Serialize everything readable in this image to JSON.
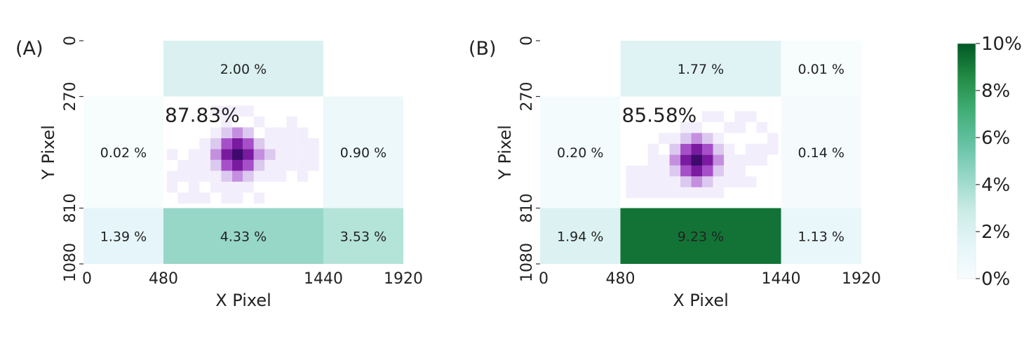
{
  "chart_data": [
    {
      "type": "heatmap",
      "panel_label": "(A)",
      "xlabel": "X Pixel",
      "ylabel": "Y Pixel",
      "x_ticks": [
        "0",
        "480",
        "1440",
        "1920"
      ],
      "y_ticks": [
        "0",
        "270",
        "810",
        "1080"
      ],
      "x_edges": [
        0,
        480,
        1440,
        1920
      ],
      "y_edges": [
        0,
        270,
        810,
        1080
      ],
      "center_label": "87.83%",
      "cells": [
        {
          "row": 0,
          "col": 0,
          "value": null,
          "label": ""
        },
        {
          "row": 0,
          "col": 1,
          "value": 2.0,
          "label": "2.00 %"
        },
        {
          "row": 0,
          "col": 2,
          "value": null,
          "label": ""
        },
        {
          "row": 1,
          "col": 0,
          "value": 0.02,
          "label": "0.02 %"
        },
        {
          "row": 1,
          "col": 2,
          "value": 0.9,
          "label": "0.90 %"
        },
        {
          "row": 2,
          "col": 0,
          "value": 1.39,
          "label": "1.39 %"
        },
        {
          "row": 2,
          "col": 1,
          "value": 4.33,
          "label": "4.33 %"
        },
        {
          "row": 2,
          "col": 2,
          "value": 3.53,
          "label": "3.53 %"
        }
      ]
    },
    {
      "type": "heatmap",
      "panel_label": "(B)",
      "xlabel": "X Pixel",
      "ylabel": "Y Pixel",
      "x_ticks": [
        "0",
        "480",
        "1440",
        "1920"
      ],
      "y_ticks": [
        "0",
        "270",
        "810",
        "1080"
      ],
      "x_edges": [
        0,
        480,
        1440,
        1920
      ],
      "y_edges": [
        0,
        270,
        810,
        1080
      ],
      "center_label": "85.58%",
      "cells": [
        {
          "row": 0,
          "col": 0,
          "value": null,
          "label": ""
        },
        {
          "row": 0,
          "col": 1,
          "value": 1.77,
          "label": "1.77 %"
        },
        {
          "row": 0,
          "col": 2,
          "value": 0.01,
          "label": "0.01 %"
        },
        {
          "row": 1,
          "col": 0,
          "value": 0.2,
          "label": "0.20 %"
        },
        {
          "row": 1,
          "col": 2,
          "value": 0.14,
          "label": "0.14 %"
        },
        {
          "row": 2,
          "col": 0,
          "value": 1.94,
          "label": "1.94 %"
        },
        {
          "row": 2,
          "col": 1,
          "value": 9.23,
          "label": "9.23 %"
        },
        {
          "row": 2,
          "col": 2,
          "value": 1.13,
          "label": "1.13 %"
        }
      ]
    }
  ],
  "colorbar": {
    "range": [
      0,
      10
    ],
    "ticks": [
      "0%",
      "2%",
      "4%",
      "6%",
      "8%",
      "10%"
    ],
    "colors": [
      "#f7fcfd",
      "#e5f5f9",
      "#ccece6",
      "#99d8c9",
      "#66c2a4",
      "#41ae76",
      "#238b45",
      "#005824"
    ]
  },
  "gaze_colors": [
    "#f3eefb",
    "#dcc9ef",
    "#c58fe0",
    "#a64fc9",
    "#7a1aa0",
    "#3f0a6e"
  ]
}
